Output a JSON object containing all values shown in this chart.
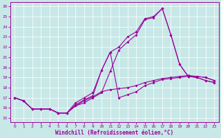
{
  "bg_color": "#c8e8e8",
  "line_color": "#990099",
  "xlabel": "Windchill (Refroidissement éolien,°C)",
  "xlim_min": -0.5,
  "xlim_max": 23.5,
  "ylim_min": 14.6,
  "ylim_max": 26.4,
  "xticks": [
    0,
    1,
    2,
    3,
    4,
    5,
    6,
    7,
    8,
    9,
    10,
    11,
    12,
    13,
    14,
    15,
    16,
    17,
    18,
    19,
    20,
    21,
    22,
    23
  ],
  "yticks": [
    15,
    16,
    17,
    18,
    19,
    20,
    21,
    22,
    23,
    24,
    25,
    26
  ],
  "series": [
    {
      "x": [
        0,
        1,
        2,
        3,
        4,
        5,
        6,
        7,
        8,
        9,
        10,
        11,
        12,
        13,
        14,
        15,
        16,
        17,
        18,
        19,
        20,
        21,
        22,
        23
      ],
      "y": [
        17.0,
        16.7,
        15.9,
        15.9,
        15.9,
        15.5,
        15.5,
        16.2,
        16.5,
        17.0,
        17.5,
        19.6,
        21.7,
        22.5,
        23.2,
        24.7,
        24.9,
        25.8,
        23.2,
        20.3,
        19.1,
        19.0,
        18.7,
        18.5
      ]
    },
    {
      "x": [
        0,
        1,
        2,
        3,
        4,
        5,
        6,
        7,
        8,
        9,
        10,
        11,
        12,
        13,
        14,
        15,
        16,
        17,
        18,
        19,
        20,
        21,
        22,
        23
      ],
      "y": [
        17.0,
        16.7,
        15.9,
        15.9,
        15.9,
        15.5,
        15.5,
        16.5,
        17.0,
        17.5,
        19.7,
        21.5,
        17.0,
        17.3,
        17.6,
        18.2,
        18.5,
        18.8,
        18.9,
        19.0,
        19.1,
        19.1,
        19.0,
        18.7
      ]
    },
    {
      "x": [
        0,
        1,
        2,
        3,
        4,
        5,
        6,
        7,
        8,
        9,
        10,
        11,
        12,
        13,
        14,
        15,
        16,
        17,
        18,
        19,
        20,
        21,
        22,
        23
      ],
      "y": [
        17.0,
        16.7,
        15.9,
        15.9,
        15.9,
        15.5,
        15.5,
        16.2,
        16.7,
        17.1,
        17.6,
        17.8,
        17.9,
        18.0,
        18.2,
        18.5,
        18.7,
        18.9,
        19.0,
        19.1,
        19.2,
        19.1,
        19.0,
        18.7
      ]
    },
    {
      "x": [
        0,
        1,
        2,
        3,
        4,
        5,
        6,
        7,
        8,
        9,
        10,
        11,
        12,
        13,
        14,
        15,
        16,
        17,
        18,
        19,
        20,
        21,
        22,
        23
      ],
      "y": [
        17.0,
        16.7,
        15.9,
        15.9,
        15.9,
        15.5,
        15.5,
        16.3,
        16.8,
        17.2,
        19.7,
        21.5,
        22.0,
        23.0,
        23.5,
        24.8,
        25.0,
        25.8,
        23.2,
        20.3,
        19.1,
        19.0,
        18.7,
        18.5
      ]
    }
  ]
}
